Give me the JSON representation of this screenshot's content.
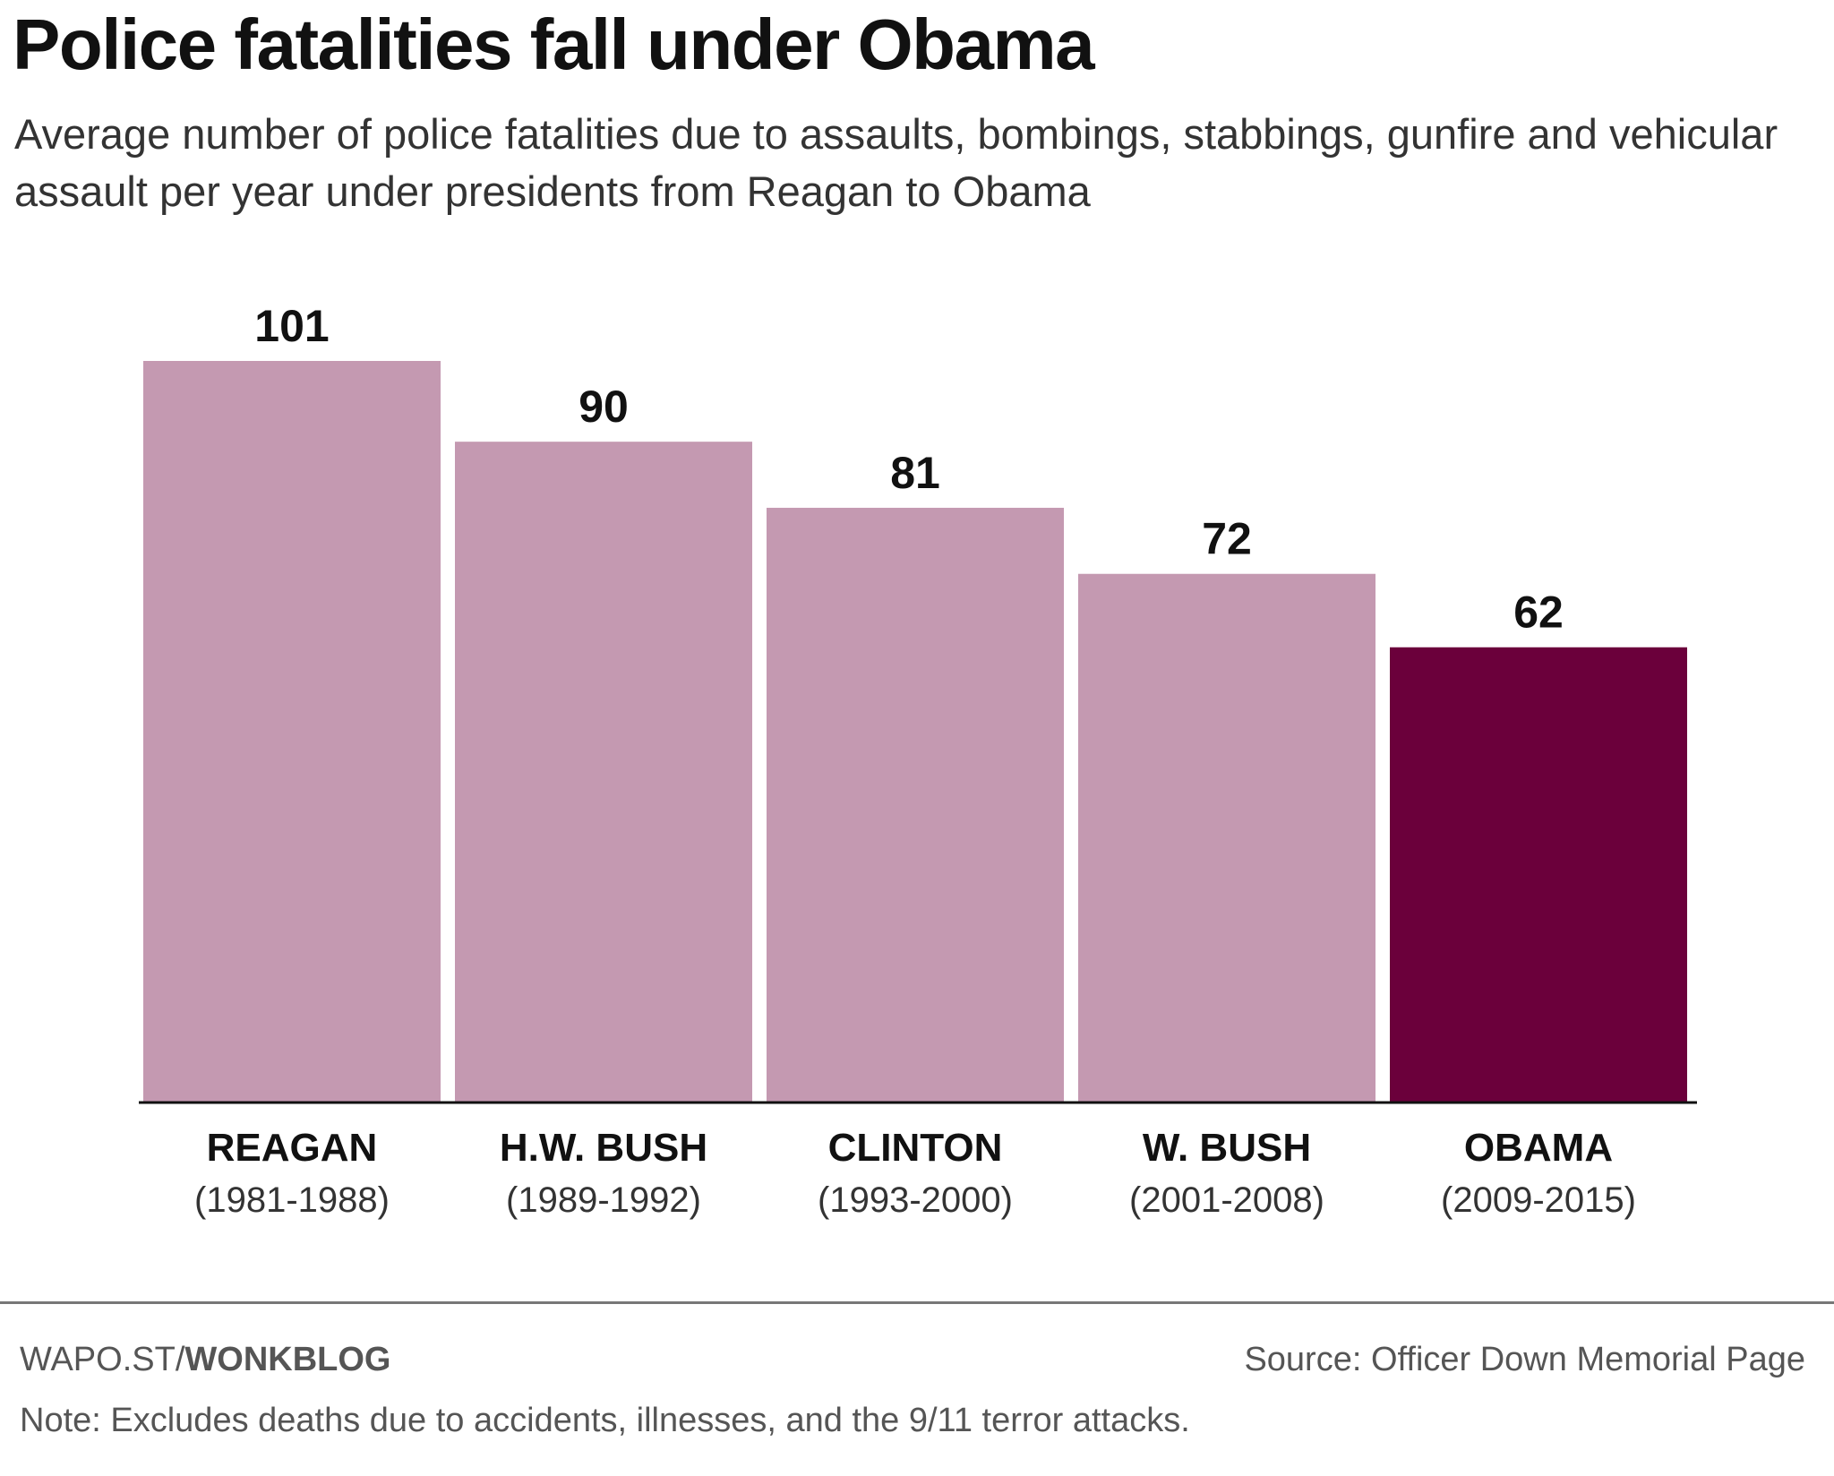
{
  "header": {
    "title": "Police fatalities fall under Obama",
    "subtitle": "Average number of police fatalities due to assaults, bombings, stabbings, gunfire and vehicular assault per year under presidents from Reagan to Obama"
  },
  "chart_data": {
    "type": "bar",
    "title": "Police fatalities fall under Obama",
    "subtitle": "Average number of police fatalities due to assaults, bombings, stabbings, gunfire and vehicular assault per year under presidents from Reagan to Obama",
    "xlabel": "",
    "ylabel": "",
    "categories": [
      "REAGAN",
      "H.W. BUSH",
      "CLINTON",
      "W. BUSH",
      "OBAMA"
    ],
    "category_years": [
      "(1981-1988)",
      "(1989-1992)",
      "(1993-2000)",
      "(2001-2008)",
      "(2009-2015)"
    ],
    "values": [
      101,
      90,
      81,
      72,
      62
    ],
    "ylim": [
      0,
      101
    ],
    "grid": false,
    "legend": "none",
    "colors": {
      "default_bar": "#c499b1",
      "highlight_bar": "#6b003b",
      "baseline": "#111111"
    },
    "highlight_index": 4
  },
  "footer": {
    "credit_prefix": "WAPO.ST/",
    "credit_bold": "WONKBLOG",
    "source": "Source: Officer Down Memorial Page",
    "note": "Note: Excludes deaths due to accidents, illnesses, and the 9/11 terror attacks."
  }
}
